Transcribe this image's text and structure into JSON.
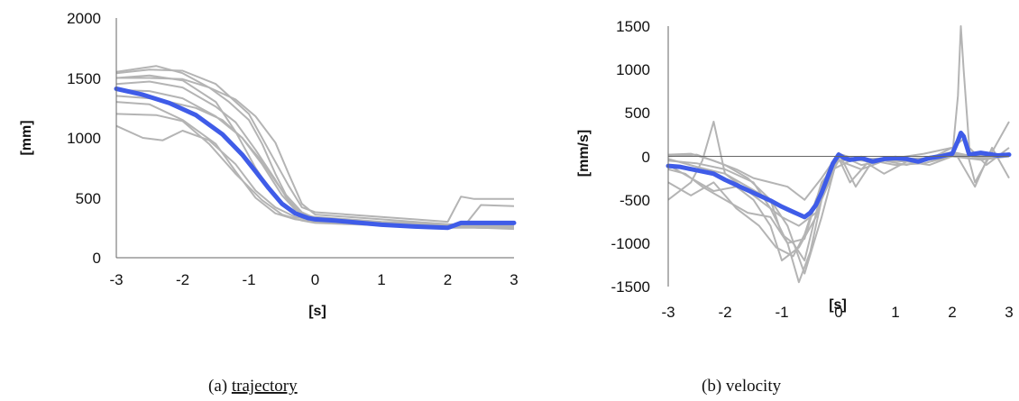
{
  "chart_data": [
    {
      "type": "line",
      "caption_prefix": "(a) ",
      "caption_word": "trajectory",
      "xlabel": "[s]",
      "ylabel": "[mm]",
      "xlim": [
        -3,
        3
      ],
      "ylim": [
        0,
        2000
      ],
      "xticks": [
        -3,
        -2,
        -1,
        0,
        1,
        2,
        3
      ],
      "yticks": [
        0,
        500,
        1000,
        1500,
        2000
      ],
      "grid": false,
      "mean_color": "#3f5ce8",
      "trial_color": "#b4b4b4",
      "mean_series": {
        "x": [
          -3,
          -2.6,
          -2.2,
          -1.8,
          -1.4,
          -1.1,
          -0.9,
          -0.7,
          -0.5,
          -0.3,
          -0.1,
          0,
          0.3,
          0.6,
          1,
          1.5,
          2,
          2.2,
          2.5,
          3
        ],
        "y": [
          1410,
          1360,
          1290,
          1190,
          1030,
          860,
          720,
          580,
          450,
          370,
          330,
          320,
          310,
          295,
          275,
          260,
          250,
          290,
          290,
          290
        ]
      },
      "trials": [
        {
          "x": [
            -3,
            -2.5,
            -2,
            -1.5,
            -1,
            -0.7,
            -0.4,
            -0.2,
            0,
            0.5,
            1,
            1.5,
            2,
            2.2,
            2.4,
            3
          ],
          "y": [
            1540,
            1570,
            1560,
            1450,
            1200,
            900,
            600,
            420,
            380,
            360,
            340,
            320,
            300,
            510,
            490,
            490
          ]
        },
        {
          "x": [
            -3,
            -2.4,
            -2,
            -1.6,
            -1.3,
            -1,
            -0.8,
            -0.6,
            -0.4,
            -0.2,
            0,
            0.5,
            1,
            1.5,
            2,
            2.3,
            2.5,
            3
          ],
          "y": [
            1550,
            1600,
            1540,
            1420,
            1300,
            1150,
            950,
            700,
            480,
            360,
            320,
            310,
            290,
            270,
            260,
            300,
            440,
            430
          ]
        },
        {
          "x": [
            -3,
            -2.5,
            -2,
            -1.5,
            -1.2,
            -0.9,
            -0.6,
            -0.3,
            0,
            0.5,
            1,
            1.5,
            2,
            2.5,
            3
          ],
          "y": [
            1500,
            1520,
            1480,
            1300,
            1050,
            750,
            500,
            370,
            340,
            320,
            300,
            290,
            270,
            260,
            260
          ]
        },
        {
          "x": [
            -3,
            -2.5,
            -2,
            -1.5,
            -1.2,
            -0.9,
            -0.6,
            -0.3,
            0,
            0.5,
            1,
            1.5,
            2,
            2.5,
            3
          ],
          "y": [
            1300,
            1280,
            1150,
            950,
            720,
            500,
            370,
            320,
            300,
            290,
            280,
            270,
            260,
            250,
            250
          ]
        },
        {
          "x": [
            -3,
            -2.6,
            -2.3,
            -2,
            -1.6,
            -1.2,
            -0.9,
            -0.6,
            -0.3,
            0,
            0.5,
            1,
            1.5,
            2,
            2.5,
            3
          ],
          "y": [
            1100,
            1000,
            980,
            1060,
            980,
            780,
            560,
            420,
            340,
            310,
            290,
            280,
            270,
            260,
            250,
            250
          ]
        },
        {
          "x": [
            -3,
            -2.4,
            -2,
            -1.6,
            -1.2,
            -0.8,
            -0.5,
            -0.2,
            0,
            0.5,
            1,
            1.5,
            2,
            2.5,
            3
          ],
          "y": [
            1200,
            1190,
            1140,
            950,
            700,
            480,
            360,
            310,
            290,
            280,
            270,
            260,
            250,
            250,
            240
          ]
        },
        {
          "x": [
            -3,
            -2.5,
            -2.2,
            -1.8,
            -1.4,
            -1.1,
            -0.8,
            -0.5,
            -0.2,
            0,
            0.5,
            1,
            1.5,
            2,
            2.5,
            3
          ],
          "y": [
            1350,
            1330,
            1300,
            1250,
            1150,
            1000,
            800,
            560,
            380,
            330,
            310,
            290,
            270,
            260,
            260,
            260
          ]
        },
        {
          "x": [
            -3,
            -2.5,
            -2,
            -1.6,
            -1.2,
            -0.9,
            -0.6,
            -0.4,
            -0.2,
            0,
            0.5,
            1,
            1.5,
            2,
            2.5,
            3
          ],
          "y": [
            1500,
            1500,
            1490,
            1420,
            1320,
            1180,
            960,
            700,
            450,
            360,
            340,
            320,
            300,
            280,
            270,
            270
          ]
        },
        {
          "x": [
            -3,
            -2.5,
            -2,
            -1.5,
            -1.2,
            -0.9,
            -0.6,
            -0.4,
            -0.2,
            0,
            0.5,
            1,
            1.5,
            2,
            2.5,
            3
          ],
          "y": [
            1450,
            1470,
            1420,
            1260,
            1130,
            900,
            650,
            470,
            350,
            310,
            300,
            290,
            280,
            270,
            270,
            270
          ]
        },
        {
          "x": [
            -3,
            -2.5,
            -2,
            -1.5,
            -1.1,
            -0.8,
            -0.5,
            -0.3,
            0,
            0.5,
            1,
            1.5,
            2,
            2.5,
            3
          ],
          "y": [
            1400,
            1390,
            1330,
            1180,
            1000,
            780,
            520,
            400,
            330,
            310,
            290,
            270,
            260,
            250,
            250
          ]
        }
      ]
    },
    {
      "type": "line",
      "caption_prefix": "(b) ",
      "caption_word": "velocity",
      "xlabel": "[s]",
      "ylabel": "[mm/s]",
      "xlim": [
        -3,
        3
      ],
      "ylim": [
        -1500,
        1500
      ],
      "xticks": [
        -3,
        -2,
        -1,
        0,
        1,
        2,
        3
      ],
      "yticks": [
        -1500,
        -1000,
        -500,
        0,
        500,
        1000,
        1500
      ],
      "grid": false,
      "mean_color": "#3f5ce8",
      "trial_color": "#b4b4b4",
      "mean_series": {
        "x": [
          -3,
          -2.8,
          -2.5,
          -2.2,
          -2,
          -1.8,
          -1.5,
          -1.2,
          -1,
          -0.9,
          -0.8,
          -0.7,
          -0.6,
          -0.5,
          -0.4,
          -0.3,
          -0.2,
          -0.1,
          0,
          0.1,
          0.2,
          0.4,
          0.6,
          0.8,
          1,
          1.2,
          1.4,
          1.6,
          1.8,
          2,
          2.1,
          2.15,
          2.2,
          2.3,
          2.5,
          2.8,
          3
        ],
        "y": [
          -110,
          -120,
          -160,
          -200,
          -270,
          -330,
          -420,
          -510,
          -580,
          -610,
          -640,
          -670,
          -700,
          -650,
          -560,
          -420,
          -250,
          -80,
          20,
          -20,
          -40,
          -20,
          -60,
          -30,
          -20,
          -30,
          -60,
          -20,
          0,
          30,
          180,
          270,
          230,
          20,
          40,
          10,
          20
        ]
      },
      "trials": [
        {
          "x": [
            -3,
            -2.6,
            -2.4,
            -2.2,
            -2,
            -1.6,
            -1.2,
            -0.9,
            -0.6,
            -0.3,
            0,
            0.3,
            0.6,
            1,
            1.5,
            2,
            2.5,
            3
          ],
          "y": [
            -500,
            -300,
            -50,
            400,
            -200,
            -350,
            -500,
            -800,
            -1350,
            -700,
            40,
            -350,
            -50,
            -100,
            -80,
            0,
            -40,
            0
          ]
        },
        {
          "x": [
            -3,
            -2.6,
            -2.2,
            -1.8,
            -1.4,
            -1.1,
            -0.8,
            -0.6,
            -0.4,
            -0.2,
            0,
            0.2,
            0.5,
            0.8,
            1.2,
            1.6,
            2,
            2.5,
            3
          ],
          "y": [
            -300,
            -450,
            -300,
            -600,
            -800,
            -1050,
            -1150,
            -900,
            -500,
            -200,
            -20,
            -300,
            -80,
            -200,
            -60,
            -100,
            0,
            -30,
            0
          ]
        },
        {
          "x": [
            -3,
            -2.7,
            -2.4,
            -2,
            -1.6,
            -1.2,
            -0.9,
            -0.7,
            -0.5,
            -0.3,
            -0.1,
            0,
            0.4,
            0.8,
            1.2,
            1.6,
            2,
            2.1,
            2.15,
            2.2,
            2.3,
            2.6,
            3
          ],
          "y": [
            -150,
            -200,
            -350,
            -500,
            -650,
            -700,
            -1000,
            -1450,
            -1100,
            -500,
            -200,
            20,
            -100,
            -50,
            -100,
            -20,
            0,
            700,
            1500,
            1000,
            100,
            -100,
            100
          ]
        },
        {
          "x": [
            -3,
            -2.5,
            -2,
            -1.6,
            -1.2,
            -1,
            -0.8,
            -0.6,
            -0.3,
            0,
            0.4,
            0.8,
            1.2,
            1.6,
            2,
            2.2,
            2.4,
            2.7,
            3
          ],
          "y": [
            0,
            20,
            -100,
            -250,
            -500,
            -900,
            -1000,
            -1200,
            -400,
            -50,
            -150,
            -50,
            -60,
            -30,
            100,
            200,
            -300,
            50,
            400
          ]
        },
        {
          "x": [
            -3,
            -2.5,
            -2,
            -1.5,
            -1.2,
            -0.9,
            -0.6,
            -0.3,
            0,
            0.5,
            1,
            1.5,
            2,
            2.4,
            2.7,
            3
          ],
          "y": [
            -50,
            -80,
            -150,
            -300,
            -600,
            -1000,
            -950,
            -300,
            -50,
            -30,
            -20,
            30,
            100,
            -350,
            100,
            -250
          ]
        },
        {
          "x": [
            -3,
            -2.5,
            -2,
            -1.6,
            -1.3,
            -1,
            -0.7,
            -0.4,
            -0.1,
            0.2,
            0.6,
            1,
            1.5,
            2,
            2.5,
            3
          ],
          "y": [
            -30,
            -120,
            -200,
            -400,
            -550,
            -700,
            -800,
            -650,
            -150,
            -50,
            -40,
            -30,
            -20,
            50,
            -20,
            30
          ]
        },
        {
          "x": [
            -3,
            -2.6,
            -2.2,
            -1.8,
            -1.5,
            -1.2,
            -0.9,
            -0.6,
            -0.3,
            0,
            0.4,
            0.8,
            1.2,
            1.6,
            2,
            2.5,
            3
          ],
          "y": [
            20,
            30,
            -50,
            -150,
            -250,
            -300,
            -350,
            -500,
            -250,
            30,
            -50,
            -20,
            -40,
            -20,
            20,
            0,
            10
          ]
        },
        {
          "x": [
            -3,
            -2.6,
            -2.2,
            -1.8,
            -1.5,
            -1.2,
            -1,
            -0.7,
            -0.4,
            -0.2,
            0,
            0.5,
            1,
            1.5,
            2,
            2.5,
            3
          ],
          "y": [
            -100,
            -250,
            -400,
            -350,
            -500,
            -800,
            -1200,
            -1050,
            -700,
            -200,
            10,
            -60,
            -30,
            -50,
            0,
            20,
            0
          ]
        }
      ]
    }
  ]
}
